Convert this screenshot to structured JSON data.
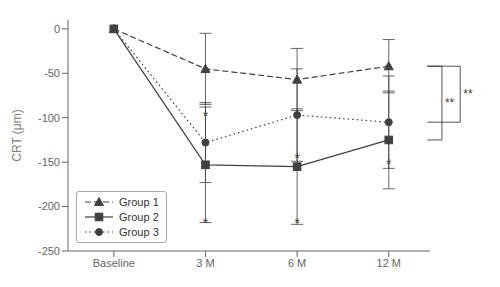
{
  "chart_data": {
    "type": "line",
    "categories": [
      "Baseline",
      "3 M",
      "6 M",
      "12 M"
    ],
    "ylabel": "CRT (μm)",
    "ylim": [
      -250,
      10
    ],
    "yticks": [
      0,
      -50,
      -100,
      -150,
      -200,
      -250
    ],
    "grid": false,
    "legend": "lower left",
    "color": "#404040",
    "series": [
      {
        "name": "Group 1",
        "color": "#404040",
        "line_style": "dashed",
        "marker": "triangle",
        "values": [
          0,
          -45,
          -57,
          -42
        ],
        "yerr": [
          0,
          40,
          35,
          30
        ]
      },
      {
        "name": "Group 2",
        "color": "#404040",
        "line_style": "solid",
        "marker": "square",
        "values": [
          0,
          -153,
          -155,
          -125
        ],
        "yerr": [
          0,
          65,
          65,
          55
        ]
      },
      {
        "name": "Group 3",
        "color": "#404040",
        "line_style": "dotted",
        "marker": "circle",
        "values": [
          0,
          -128,
          -97,
          -105
        ],
        "yerr": [
          0,
          45,
          52,
          52
        ]
      }
    ],
    "annotations": [
      {
        "text": "*",
        "x": "3 M",
        "y": -98
      },
      {
        "text": "*",
        "x": "3 M",
        "y": -218
      },
      {
        "text": "*",
        "x": "6 M",
        "y": -145
      },
      {
        "text": "*",
        "x": "6 M",
        "y": -218
      },
      {
        "text": "*",
        "x": "12 M",
        "y": -152
      }
    ],
    "brackets": [
      {
        "text": "**",
        "x": "12 M",
        "from": -42,
        "to": -125
      },
      {
        "text": "**",
        "x": "12 M",
        "from": -42,
        "to": -105
      }
    ]
  }
}
